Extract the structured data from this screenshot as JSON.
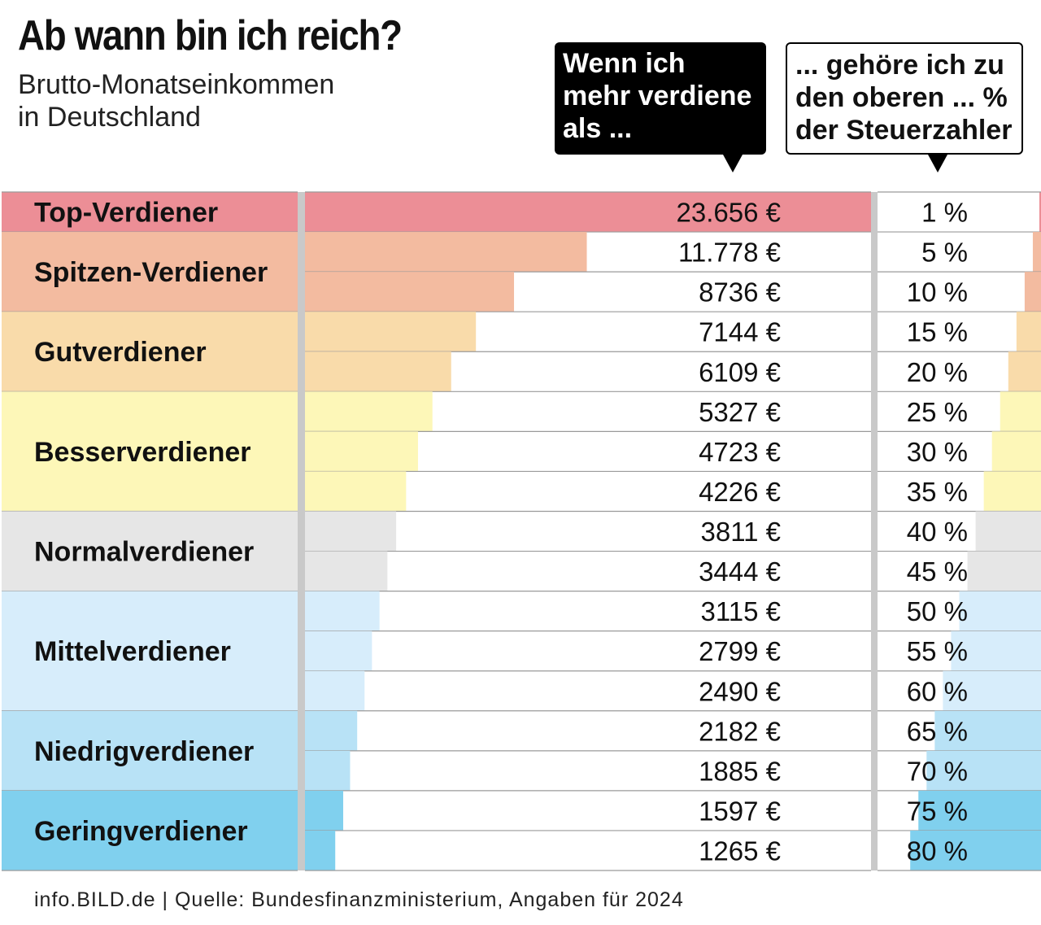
{
  "header": {
    "title": "Ab wann bin ich reich?",
    "subtitle": "Brutto-Monatseinkommen\nin Deutschland",
    "bubble_income": "Wenn ich\nmehr verdiene\nals ...",
    "bubble_percent": "... gehöre ich zu\nden oberen ... %\nder Steuerzahler"
  },
  "footer": {
    "source": "info.BILD.de | Quelle: Bundesfinanzministerium, Angaben für 2024"
  },
  "chart_data": {
    "type": "bar",
    "x_max": 23656,
    "categories": [
      "1 %",
      "5 %",
      "10 %",
      "15 %",
      "20 %",
      "25 %",
      "30 %",
      "35 %",
      "40 %",
      "45 %",
      "50 %",
      "55 %",
      "60 %",
      "65 %",
      "70 %",
      "75 %",
      "80 %"
    ],
    "percent": [
      1,
      5,
      10,
      15,
      20,
      25,
      30,
      35,
      40,
      45,
      50,
      55,
      60,
      65,
      70,
      75,
      80
    ],
    "values": [
      23656,
      11778,
      8736,
      7144,
      6109,
      5327,
      4723,
      4226,
      3811,
      3444,
      3115,
      2799,
      2490,
      2182,
      1885,
      1597,
      1265
    ],
    "value_labels": [
      "23.656 €",
      "11.778 €",
      "8736 €",
      "7144 €",
      "6109 €",
      "5327 €",
      "4723 €",
      "4226 €",
      "3811 €",
      "3444 €",
      "3115 €",
      "2799 €",
      "2490 €",
      "2182 €",
      "1885 €",
      "1597 €",
      "1265 €"
    ],
    "groups": [
      {
        "name": "Top-Verdiener",
        "first": 0,
        "count": 1,
        "color": "#ec8e96"
      },
      {
        "name": "Spitzen-Verdiener",
        "first": 1,
        "count": 2,
        "color": "#f3bba0"
      },
      {
        "name": "Gutverdiener",
        "first": 3,
        "count": 2,
        "color": "#f9dbaa"
      },
      {
        "name": "Besserverdiener",
        "first": 5,
        "count": 3,
        "color": "#fdf7b8"
      },
      {
        "name": "Normalverdiener",
        "first": 8,
        "count": 2,
        "color": "#e6e6e6"
      },
      {
        "name": "Mittelverdiener",
        "first": 10,
        "count": 3,
        "color": "#d7edfb"
      },
      {
        "name": "Niedrigverdiener",
        "first": 13,
        "count": 2,
        "color": "#b8e2f6"
      },
      {
        "name": "Geringverdiener",
        "first": 15,
        "count": 2,
        "color": "#80d0ee"
      }
    ]
  }
}
